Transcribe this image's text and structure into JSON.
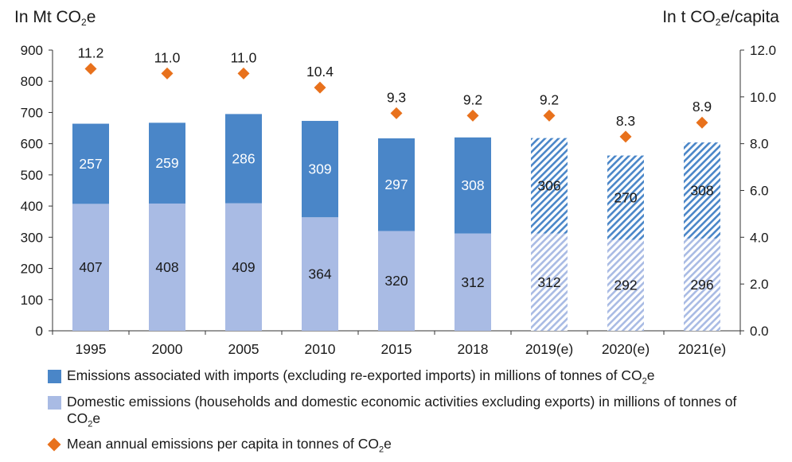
{
  "left_axis_title": {
    "pre": "In Mt CO",
    "sub": "2",
    "post": "e"
  },
  "right_axis_title": {
    "pre": "In t CO",
    "sub": "2",
    "post": "e/capita"
  },
  "colors": {
    "imports": "#4a86c8",
    "domestic": "#a9bbe4",
    "imports_estimate_hatch": "#4a86c8",
    "domestic_estimate_hatch": "#a9bbe4",
    "per_capita": "#e8711c"
  },
  "chart_data": {
    "type": "bar",
    "stacked": true,
    "categories": [
      "1995",
      "2000",
      "2005",
      "2010",
      "2015",
      "2018",
      "2019(e)",
      "2020(e)",
      "2021(e)"
    ],
    "estimated": [
      false,
      false,
      false,
      false,
      false,
      false,
      true,
      true,
      true
    ],
    "series": [
      {
        "key": "domestic",
        "values": [
          407,
          408,
          409,
          364,
          320,
          312,
          312,
          292,
          296
        ],
        "axis": "left"
      },
      {
        "key": "imports",
        "values": [
          257,
          259,
          286,
          309,
          297,
          308,
          306,
          270,
          308
        ],
        "axis": "left"
      },
      {
        "key": "per_capita",
        "type": "scatter",
        "values": [
          11.2,
          11.0,
          11.0,
          10.4,
          9.3,
          9.2,
          9.2,
          8.3,
          8.9
        ],
        "value_labels": [
          "11.2",
          "11.0",
          "11.0",
          "10.4",
          "9.3",
          "9.2",
          "9.2",
          "8.3",
          "8.9"
        ],
        "axis": "right"
      }
    ],
    "y_left": {
      "min": 0,
      "max": 900,
      "ticks": [
        0,
        100,
        200,
        300,
        400,
        500,
        600,
        700,
        800,
        900
      ]
    },
    "y_right": {
      "min": 0,
      "max": 12,
      "ticks": [
        "0.0",
        "2.0",
        "4.0",
        "6.0",
        "8.0",
        "10.0",
        "12.0"
      ]
    },
    "legend_placement": "bottom"
  },
  "legend": [
    {
      "key": "imports",
      "pre": "Emissions associated with imports (excluding re-exported imports) in millions of tonnes of CO",
      "sub": "2",
      "post": "e"
    },
    {
      "key": "domestic",
      "pre": "Domestic emissions (households and domestic economic activities excluding exports) in millions of tonnes of CO",
      "sub": "2",
      "post": "e"
    },
    {
      "key": "per_capita",
      "pre": "Mean annual emissions per capita in tonnes of CO",
      "sub": "2",
      "post": "e"
    }
  ]
}
